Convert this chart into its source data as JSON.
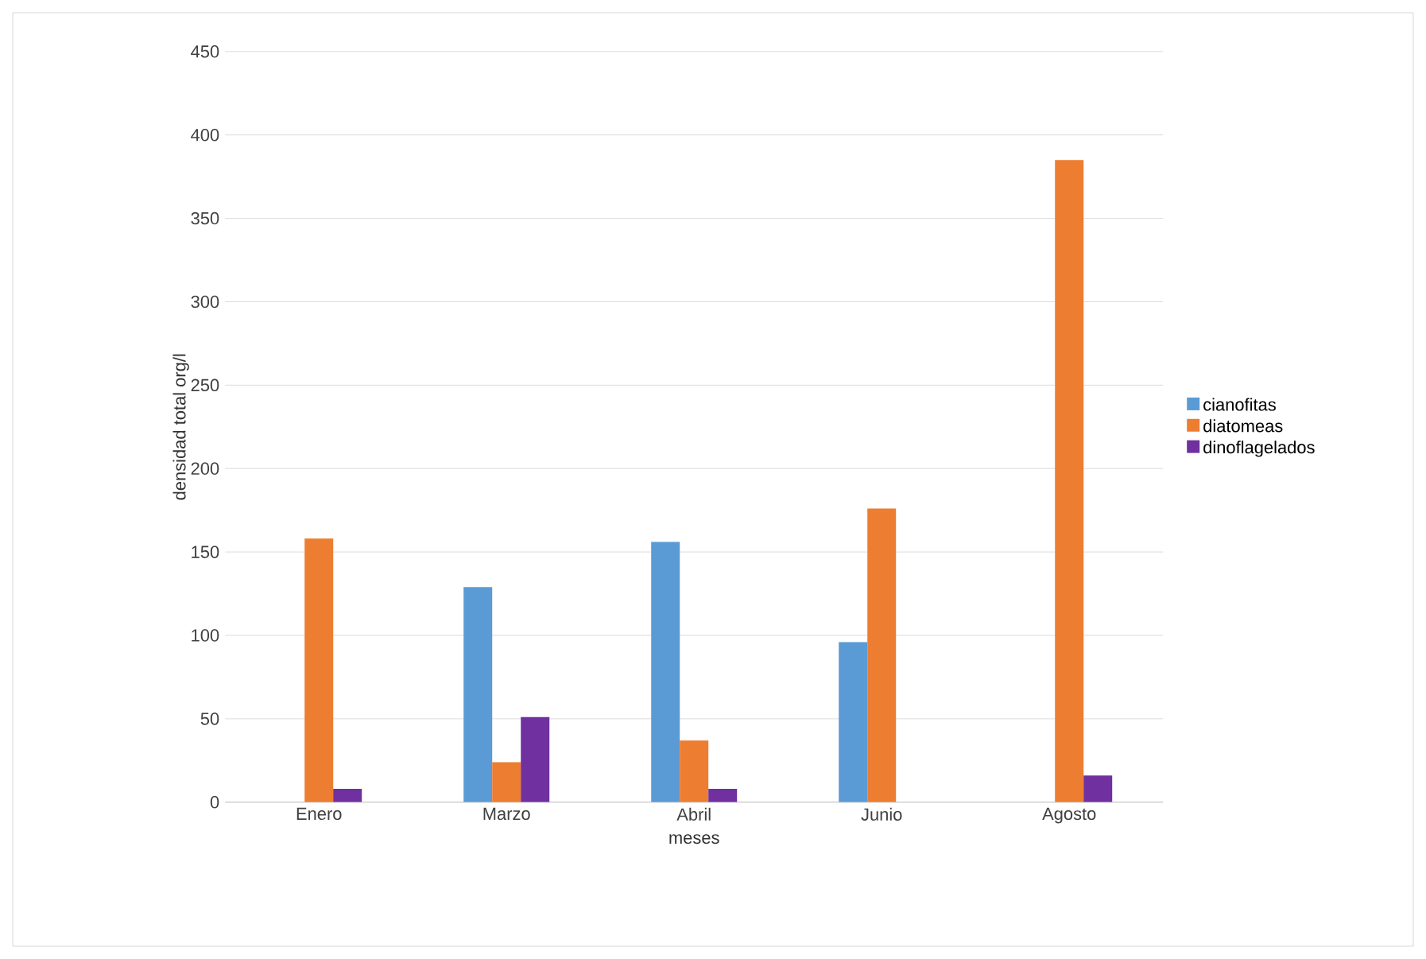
{
  "chart_data": {
    "type": "bar",
    "xlabel": "meses",
    "ylabel": "densidad total org/l",
    "categories": [
      "Enero",
      "Marzo",
      "Abril",
      "Junio",
      "Agosto"
    ],
    "series": [
      {
        "name": "cianofitas",
        "color": "#5b9bd5",
        "values": [
          0,
          129,
          156,
          96,
          0
        ]
      },
      {
        "name": "diatomeas",
        "color": "#ed7d31",
        "values": [
          158,
          24,
          37,
          176,
          385
        ]
      },
      {
        "name": "dinoflagelados",
        "color": "#7030a0",
        "values": [
          8,
          51,
          8,
          0,
          16
        ]
      }
    ],
    "ylim": [
      0,
      450
    ],
    "yticks": [
      0,
      50,
      100,
      150,
      200,
      250,
      300,
      350,
      400,
      450
    ],
    "grid": "y",
    "legend": "right"
  }
}
